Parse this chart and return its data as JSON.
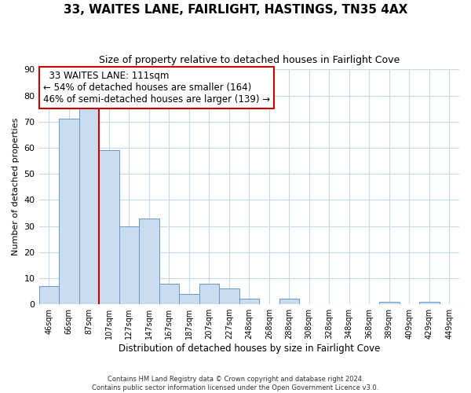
{
  "title": "33, WAITES LANE, FAIRLIGHT, HASTINGS, TN35 4AX",
  "subtitle": "Size of property relative to detached houses in Fairlight Cove",
  "xlabel": "Distribution of detached houses by size in Fairlight Cove",
  "ylabel": "Number of detached properties",
  "bar_labels": [
    "46sqm",
    "66sqm",
    "87sqm",
    "107sqm",
    "127sqm",
    "147sqm",
    "167sqm",
    "187sqm",
    "207sqm",
    "227sqm",
    "248sqm",
    "268sqm",
    "288sqm",
    "308sqm",
    "328sqm",
    "348sqm",
    "368sqm",
    "389sqm",
    "409sqm",
    "429sqm",
    "449sqm"
  ],
  "bar_values": [
    7,
    71,
    75,
    59,
    30,
    33,
    8,
    4,
    8,
    6,
    2,
    0,
    2,
    0,
    0,
    0,
    0,
    1,
    0,
    1,
    0
  ],
  "bar_color": "#c9dcf0",
  "bar_edge_color": "#6699cc",
  "reference_line_x": 2.5,
  "reference_line_color": "#cc0000",
  "ylim": [
    0,
    90
  ],
  "yticks": [
    0,
    10,
    20,
    30,
    40,
    50,
    60,
    70,
    80,
    90
  ],
  "annotation_title": "33 WAITES LANE: 111sqm",
  "annotation_line1": "← 54% of detached houses are smaller (164)",
  "annotation_line2": "46% of semi-detached houses are larger (139) →",
  "footer_line1": "Contains HM Land Registry data © Crown copyright and database right 2024.",
  "footer_line2": "Contains public sector information licensed under the Open Government Licence v3.0.",
  "background_color": "#ffffff",
  "grid_color": "#c8d8e8"
}
